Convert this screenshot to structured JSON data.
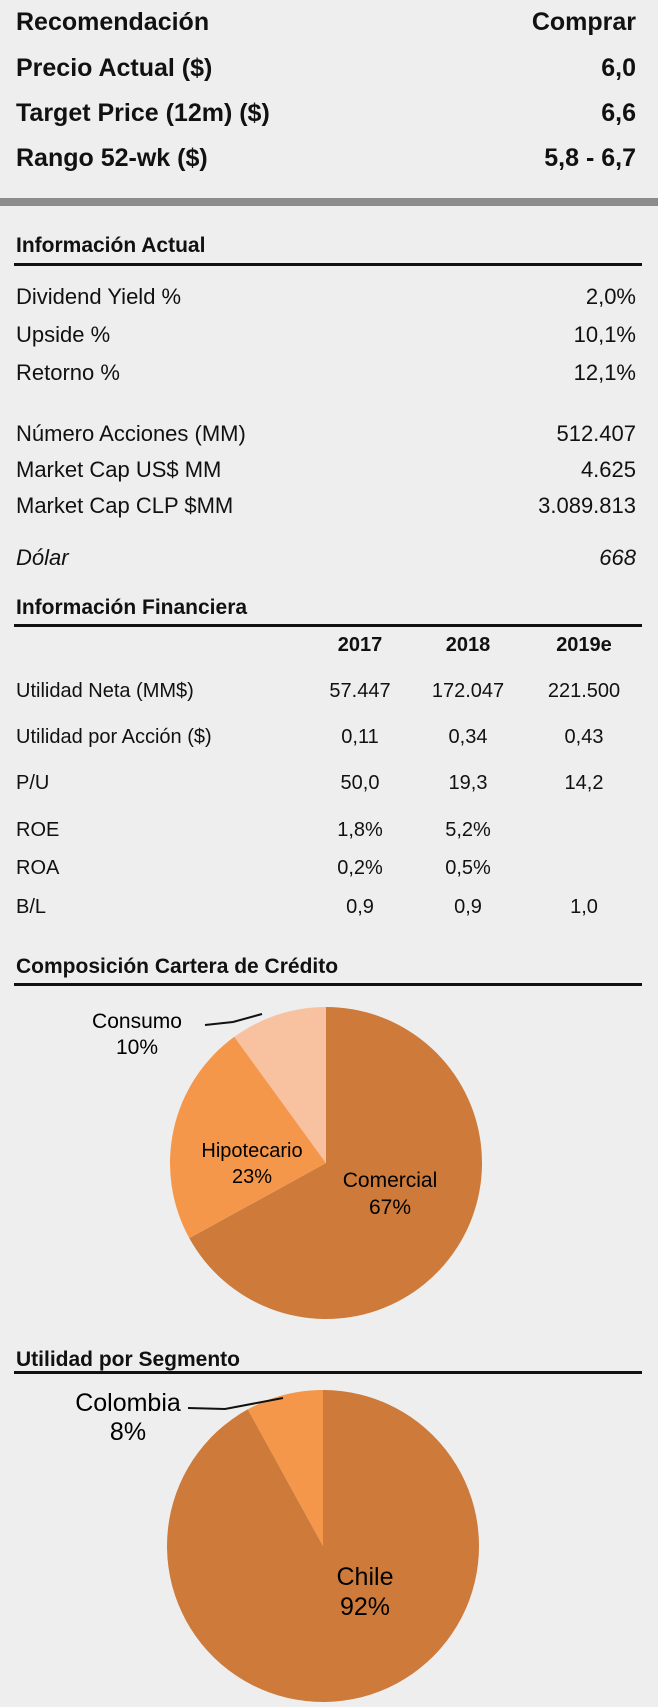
{
  "header": {
    "rows": [
      {
        "label": "Recomendación",
        "value": "Comprar"
      },
      {
        "label": "Precio Actual  ($)",
        "value": "6,0"
      },
      {
        "label": "Target Price (12m)  ($)",
        "value": "6,6"
      },
      {
        "label": "Rango 52-wk ($)",
        "value": "5,8 - 6,7"
      }
    ]
  },
  "info_actual": {
    "title": "Información Actual",
    "rows": [
      {
        "label": "Dividend Yield %",
        "value": "2,0%"
      },
      {
        "label": "Upside %",
        "value": "10,1%"
      },
      {
        "label": "Retorno %",
        "value": "12,1%"
      },
      {
        "label": "Número Acciones (MM)",
        "value": "512.407"
      },
      {
        "label": "Market Cap US$ MM",
        "value": "4.625"
      },
      {
        "label": "Market Cap CLP $MM",
        "value": "3.089.813"
      },
      {
        "label": "Dólar",
        "value": "668"
      }
    ]
  },
  "info_financiera": {
    "title": "Información Financiera",
    "columns": [
      "2017",
      "2018",
      "2019e"
    ],
    "rows": [
      {
        "label": "Utilidad Neta (MM$)",
        "values": [
          "57.447",
          "172.047",
          "221.500"
        ]
      },
      {
        "label": "Utilidad por Acción ($)",
        "values": [
          "0,11",
          "0,34",
          "0,43"
        ]
      },
      {
        "label": "P/U",
        "values": [
          "50,0",
          "19,3",
          "14,2"
        ]
      },
      {
        "label": "ROE",
        "values": [
          "1,8%",
          "5,2%",
          ""
        ]
      },
      {
        "label": "ROA",
        "values": [
          "0,2%",
          "0,5%",
          ""
        ]
      },
      {
        "label": "B/L",
        "values": [
          "0,9",
          "0,9",
          "1,0"
        ]
      }
    ]
  },
  "chart_data": [
    {
      "type": "pie",
      "title": "Composición Cartera de Crédito",
      "categories": [
        "Comercial",
        "Hipotecario",
        "Consumo"
      ],
      "values": [
        67,
        23,
        10
      ],
      "labels": [
        "67%",
        "23%",
        "10%"
      ],
      "colors": [
        "#cd7a3a",
        "#f5974a",
        "#f8c1a0"
      ]
    },
    {
      "type": "pie",
      "title": "Utilidad por Segmento",
      "categories": [
        "Chile",
        "Colombia"
      ],
      "values": [
        92,
        8
      ],
      "labels": [
        "92%",
        "8%"
      ],
      "colors": [
        "#cd7a3a",
        "#f5974a"
      ]
    }
  ]
}
